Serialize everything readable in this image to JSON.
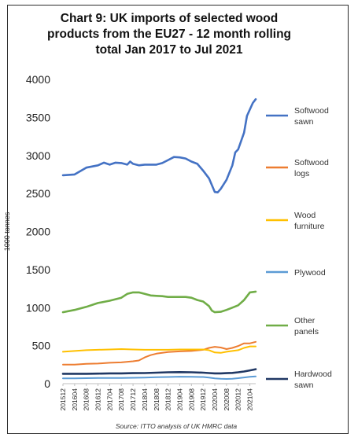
{
  "chart_data": {
    "type": "line",
    "title_lines": [
      "Chart 9: UK imports of selected wood",
      "products from the EU27 - 12 month rolling",
      "total Jan 2017 to Jul 2021"
    ],
    "ylabel": "1000 tonnes",
    "xlabel": "",
    "ylim": [
      0,
      4000
    ],
    "y_ticks": [
      0,
      500,
      1000,
      1500,
      2000,
      2500,
      3000,
      3500,
      4000
    ],
    "grid": false,
    "legend_position": "right",
    "x_labels": [
      "201512",
      "201604",
      "201608",
      "201612",
      "201704",
      "201708",
      "201712",
      "201804",
      "201808",
      "201812",
      "201904",
      "201908",
      "201912",
      "202004",
      "202008",
      "202012",
      "202104"
    ],
    "source": "Source: ITTO analysis of UK HMRC data",
    "series": [
      {
        "name": "Softwood sawn",
        "legend_lines": [
          "Softwood",
          "sawn"
        ],
        "color": "#4472c4",
        "width": 2.6,
        "values": [
          [
            201512,
            2740
          ],
          [
            201604,
            2750
          ],
          [
            201608,
            2840
          ],
          [
            201612,
            2870
          ],
          [
            201702,
            2905
          ],
          [
            201704,
            2880
          ],
          [
            201706,
            2905
          ],
          [
            201708,
            2900
          ],
          [
            201710,
            2880
          ],
          [
            201711,
            2920
          ],
          [
            201712,
            2890
          ],
          [
            201802,
            2870
          ],
          [
            201804,
            2880
          ],
          [
            201806,
            2880
          ],
          [
            201808,
            2880
          ],
          [
            201810,
            2900
          ],
          [
            201812,
            2940
          ],
          [
            201902,
            2980
          ],
          [
            201904,
            2975
          ],
          [
            201906,
            2960
          ],
          [
            201908,
            2920
          ],
          [
            201910,
            2890
          ],
          [
            201912,
            2800
          ],
          [
            202002,
            2700
          ],
          [
            202004,
            2520
          ],
          [
            202005,
            2515
          ],
          [
            202006,
            2560
          ],
          [
            202008,
            2680
          ],
          [
            202010,
            2870
          ],
          [
            202011,
            3040
          ],
          [
            202012,
            3080
          ],
          [
            202102,
            3300
          ],
          [
            202103,
            3520
          ],
          [
            202105,
            3690
          ],
          [
            202106,
            3740
          ]
        ]
      },
      {
        "name": "Softwood logs",
        "legend_lines": [
          "Softwood",
          "logs"
        ],
        "color": "#ed7d31",
        "width": 2,
        "values": [
          [
            201512,
            250
          ],
          [
            201604,
            250
          ],
          [
            201608,
            260
          ],
          [
            201612,
            265
          ],
          [
            201704,
            275
          ],
          [
            201708,
            280
          ],
          [
            201712,
            295
          ],
          [
            201802,
            305
          ],
          [
            201804,
            345
          ],
          [
            201806,
            375
          ],
          [
            201808,
            395
          ],
          [
            201812,
            415
          ],
          [
            201904,
            425
          ],
          [
            201908,
            430
          ],
          [
            201912,
            445
          ],
          [
            202002,
            470
          ],
          [
            202004,
            485
          ],
          [
            202006,
            475
          ],
          [
            202008,
            455
          ],
          [
            202010,
            470
          ],
          [
            202012,
            495
          ],
          [
            202102,
            530
          ],
          [
            202104,
            530
          ],
          [
            202106,
            550
          ]
        ]
      },
      {
        "name": "Wood furniture",
        "legend_lines": [
          "Wood",
          "furniture"
        ],
        "color": "#ffc000",
        "width": 2,
        "values": [
          [
            201512,
            420
          ],
          [
            201604,
            430
          ],
          [
            201608,
            440
          ],
          [
            201612,
            445
          ],
          [
            201704,
            450
          ],
          [
            201708,
            455
          ],
          [
            201712,
            450
          ],
          [
            201804,
            445
          ],
          [
            201808,
            445
          ],
          [
            201812,
            445
          ],
          [
            201904,
            450
          ],
          [
            201908,
            450
          ],
          [
            201912,
            450
          ],
          [
            202002,
            440
          ],
          [
            202004,
            410
          ],
          [
            202006,
            405
          ],
          [
            202008,
            420
          ],
          [
            202010,
            430
          ],
          [
            202012,
            440
          ],
          [
            202102,
            470
          ],
          [
            202104,
            490
          ],
          [
            202106,
            490
          ]
        ]
      },
      {
        "name": "Plywood",
        "legend_lines": [
          "Plywood"
        ],
        "color": "#5b9bd5",
        "width": 2,
        "values": [
          [
            201512,
            70
          ],
          [
            201604,
            70
          ],
          [
            201608,
            72
          ],
          [
            201612,
            75
          ],
          [
            201704,
            75
          ],
          [
            201708,
            75
          ],
          [
            201712,
            78
          ],
          [
            201804,
            80
          ],
          [
            201808,
            85
          ],
          [
            201812,
            88
          ],
          [
            201904,
            92
          ],
          [
            201908,
            90
          ],
          [
            201912,
            88
          ],
          [
            202002,
            80
          ],
          [
            202004,
            70
          ],
          [
            202006,
            65
          ],
          [
            202008,
            62
          ],
          [
            202010,
            65
          ],
          [
            202012,
            72
          ],
          [
            202102,
            82
          ],
          [
            202104,
            90
          ],
          [
            202106,
            95
          ]
        ]
      },
      {
        "name": "Other panels",
        "legend_lines": [
          "Other",
          "panels"
        ],
        "color": "#70ad47",
        "width": 2.6,
        "values": [
          [
            201512,
            940
          ],
          [
            201604,
            970
          ],
          [
            201608,
            1010
          ],
          [
            201612,
            1060
          ],
          [
            201704,
            1090
          ],
          [
            201708,
            1130
          ],
          [
            201710,
            1180
          ],
          [
            201712,
            1200
          ],
          [
            201802,
            1200
          ],
          [
            201804,
            1180
          ],
          [
            201806,
            1160
          ],
          [
            201808,
            1155
          ],
          [
            201810,
            1150
          ],
          [
            201812,
            1140
          ],
          [
            201902,
            1140
          ],
          [
            201904,
            1140
          ],
          [
            201906,
            1140
          ],
          [
            201908,
            1130
          ],
          [
            201910,
            1100
          ],
          [
            201912,
            1080
          ],
          [
            202002,
            1020
          ],
          [
            202003,
            960
          ],
          [
            202004,
            940
          ],
          [
            202006,
            945
          ],
          [
            202008,
            970
          ],
          [
            202010,
            1000
          ],
          [
            202012,
            1030
          ],
          [
            202102,
            1100
          ],
          [
            202104,
            1200
          ],
          [
            202106,
            1210
          ]
        ]
      },
      {
        "name": "Hardwood sawn",
        "legend_lines": [
          "Hardwood",
          "sawn"
        ],
        "color": "#203864",
        "width": 2.6,
        "values": [
          [
            201512,
            130
          ],
          [
            201604,
            130
          ],
          [
            201608,
            130
          ],
          [
            201612,
            132
          ],
          [
            201704,
            135
          ],
          [
            201708,
            135
          ],
          [
            201712,
            138
          ],
          [
            201804,
            140
          ],
          [
            201808,
            145
          ],
          [
            201812,
            150
          ],
          [
            201904,
            152
          ],
          [
            201908,
            150
          ],
          [
            201912,
            145
          ],
          [
            202002,
            140
          ],
          [
            202004,
            135
          ],
          [
            202006,
            135
          ],
          [
            202008,
            138
          ],
          [
            202010,
            142
          ],
          [
            202012,
            150
          ],
          [
            202102,
            160
          ],
          [
            202104,
            175
          ],
          [
            202106,
            190
          ]
        ]
      }
    ]
  }
}
